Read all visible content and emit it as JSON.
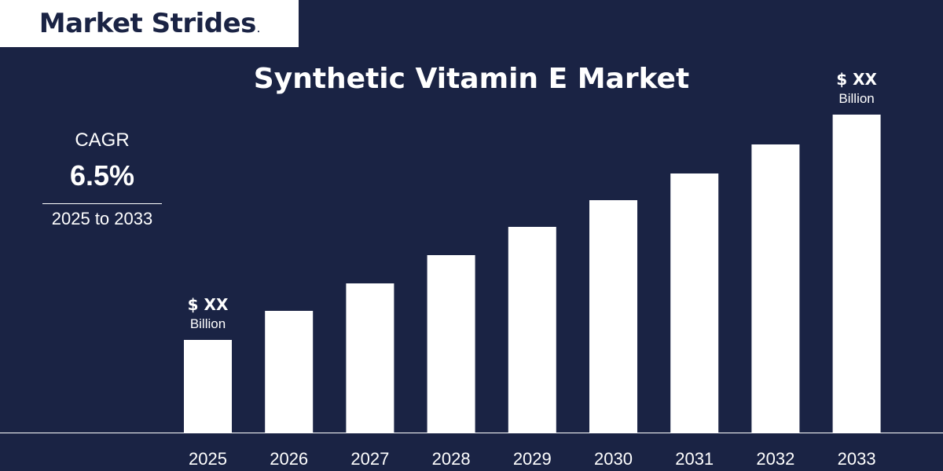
{
  "brand": {
    "name": "Market Strides",
    "mark": "."
  },
  "colors": {
    "background": "#1a2344",
    "bar": "#ffffff",
    "text": "#ffffff"
  },
  "cagr": {
    "label": "CAGR",
    "value": "6.5%",
    "period": "2025 to 2033"
  },
  "chart_data": {
    "type": "bar",
    "title": "Synthetic Vitamin E Market",
    "xlabel": "",
    "ylabel": "",
    "categories": [
      "2025",
      "2026",
      "2027",
      "2028",
      "2029",
      "2030",
      "2031",
      "2032",
      "2033"
    ],
    "values": [
      118,
      155,
      190,
      226,
      262,
      296,
      330,
      367,
      405
    ],
    "value_scale_note": "relative bar heights; absolute values not printed",
    "grid": false,
    "annotations": [
      {
        "category": "2025",
        "value_label": "$ XX",
        "unit_label": "Billion"
      },
      {
        "category": "2033",
        "value_label": "$ XX",
        "unit_label": "Billion"
      }
    ]
  }
}
